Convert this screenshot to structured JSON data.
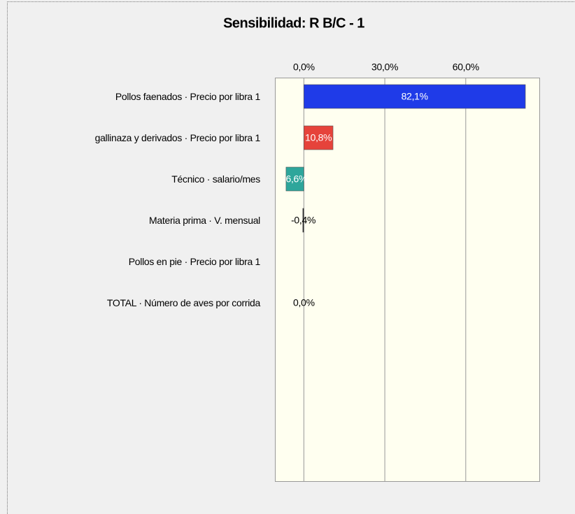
{
  "chart_data": {
    "type": "bar",
    "orientation": "horizontal",
    "title": "Sensibilidad: R B/C - 1",
    "categories": [
      "Pollos faenados · Precio por libra 1",
      "gallinaza y derivados · Precio por libra 1",
      "Técnico  · salario/mes",
      "Materia prima · V. mensual",
      "Pollos en pie · Precio por libra 1",
      "TOTAL · Número de aves por corrida"
    ],
    "values": [
      82.1,
      10.8,
      -6.6,
      -0.4,
      0.0,
      0.0
    ],
    "value_labels": [
      "82,1%",
      "10,8%",
      "-6,6%",
      "-0,4%",
      null,
      "0,0%"
    ],
    "colors": [
      "#1f3be8",
      "#e6433b",
      "#2ea69b",
      "#333333",
      "#ffffff",
      "#333333"
    ],
    "xlim": [
      -10.6,
      87.4
    ],
    "xticks": [
      {
        "value": 0,
        "label": "0,0%"
      },
      {
        "value": 30,
        "label": "30,0%"
      },
      {
        "value": 60,
        "label": "60,0%"
      }
    ],
    "grid": true
  }
}
